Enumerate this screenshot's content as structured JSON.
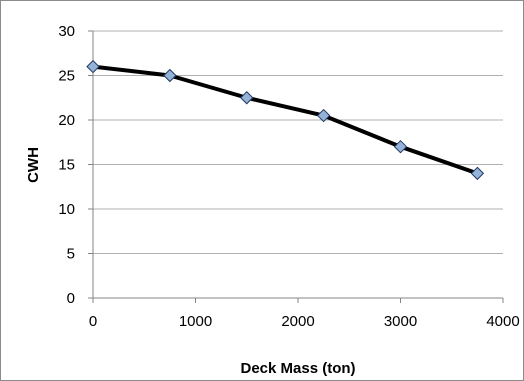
{
  "chart_data": {
    "type": "line",
    "title": "",
    "xlabel": "Deck Mass (ton)",
    "ylabel": "CWH",
    "x": [
      0,
      750,
      1500,
      2250,
      3000,
      3750
    ],
    "series": [
      {
        "values": [
          26,
          25,
          22.5,
          20.5,
          17,
          14
        ]
      }
    ],
    "xlim": [
      0,
      4000
    ],
    "ylim": [
      0,
      30
    ],
    "xticks": [
      "0",
      "1000",
      "2000",
      "3000",
      "4000"
    ],
    "yticks": [
      "0",
      "5",
      "10",
      "15",
      "20",
      "25",
      "30"
    ],
    "grid": "horizontal",
    "legend": "none",
    "colors": {
      "line": "#000000",
      "marker_fill": "#95b3d7",
      "marker_stroke": "#1f3864",
      "grid": "#b0b0b0",
      "axis": "#868686"
    }
  }
}
